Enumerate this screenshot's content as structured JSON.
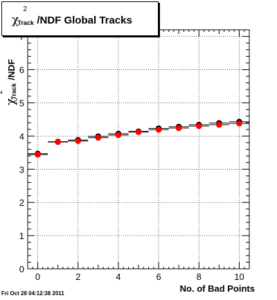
{
  "title": {
    "chi": "χ",
    "sup": "2",
    "sub": "Track",
    "rest": "/NDF  Global Tracks"
  },
  "ylabel": {
    "chi": "χ",
    "sup": "2",
    "sub": "Track",
    "rest": "/NDF"
  },
  "xlabel": "No. of Bad Points",
  "timestamp": "Fri Oct 28 04:12:38 2011",
  "chart_data": {
    "type": "scatter",
    "xlim": [
      -0.5,
      10.5
    ],
    "ylim": [
      0,
      7.2
    ],
    "x_ticks": [
      0,
      2,
      4,
      6,
      8,
      10
    ],
    "y_ticks": [
      0,
      1,
      2,
      3,
      4,
      5,
      6,
      7
    ],
    "grid": true,
    "series": [
      {
        "marker_color": "#ff0000",
        "x": [
          0,
          1,
          2,
          3,
          4,
          5,
          6,
          7,
          8,
          9,
          10
        ],
        "y": [
          3.44,
          3.82,
          3.85,
          3.95,
          4.03,
          4.12,
          4.19,
          4.24,
          4.3,
          4.34,
          4.38
        ]
      },
      {
        "marker_color": "#000000",
        "x": [
          0,
          1,
          2,
          3,
          4,
          5,
          6,
          7,
          8,
          9,
          10
        ],
        "y": [
          3.47,
          3.83,
          3.88,
          3.99,
          4.07,
          4.14,
          4.23,
          4.28,
          4.34,
          4.39,
          4.43
        ]
      }
    ]
  }
}
